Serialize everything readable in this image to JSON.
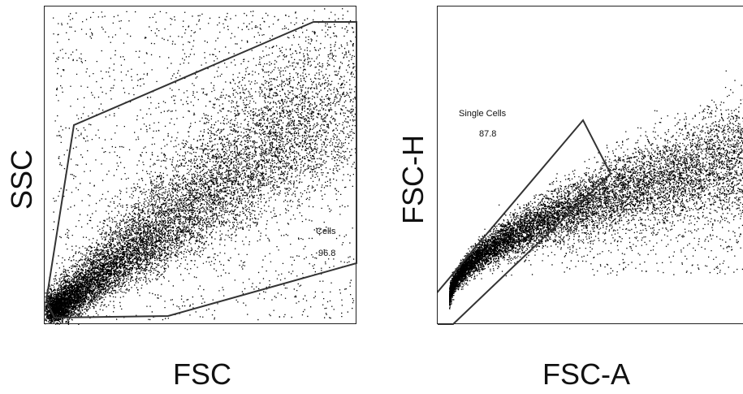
{
  "chart_data": [
    {
      "type": "scatter",
      "xlabel": "FSC",
      "ylabel": "SSC",
      "grid": false,
      "gate": {
        "name": "Cells",
        "percent": "96.8"
      },
      "point_count_density": "very high",
      "colors": {
        "points": "#000000",
        "gate": "#333333"
      }
    },
    {
      "type": "scatter",
      "xlabel": "FSC-A",
      "ylabel": "FSC-H",
      "grid": false,
      "gate": {
        "name": "Single Cells",
        "percent": "87.8"
      },
      "point_count_density": "very high",
      "colors": {
        "points": "#000000",
        "gate": "#333333"
      }
    }
  ]
}
